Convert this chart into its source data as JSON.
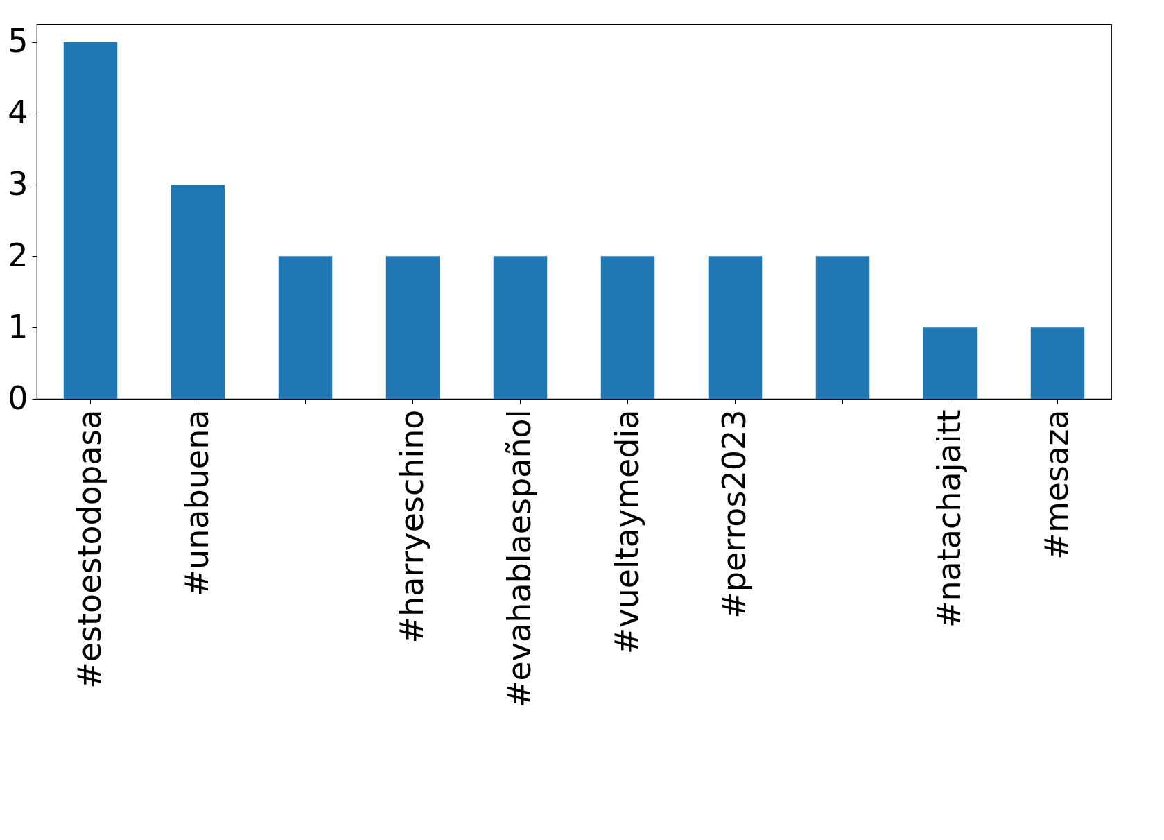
{
  "chart_data": {
    "type": "bar",
    "categories": [
      "#estoestodopasa",
      "#unabuena",
      null,
      "#harryeschino",
      "#evahablaespañol",
      "#vueltaymedia",
      "#perros2023",
      null,
      "#natachajaitt",
      "#mesaza"
    ],
    "values": [
      5,
      3,
      2,
      2,
      2,
      2,
      2,
      2,
      1,
      1
    ],
    "color": "#1f77b4",
    "ylim": [
      0,
      5.25
    ],
    "yticks": [
      0,
      1,
      2,
      3,
      4,
      5
    ],
    "grid": false
  }
}
